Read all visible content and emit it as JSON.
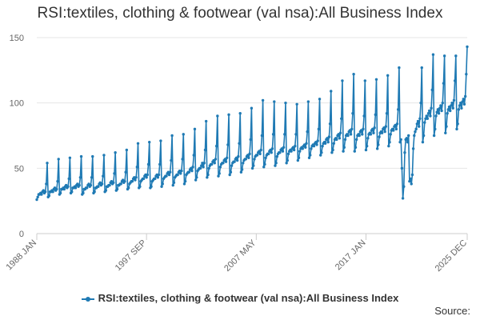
{
  "chart_data": {
    "type": "line",
    "title": "RSI:textiles, clothing & footwear (val nsa):All Business Index",
    "xlabel": "",
    "ylabel": "",
    "ylim": [
      0,
      150
    ],
    "y_ticks": [
      "0",
      "50",
      "100",
      "150"
    ],
    "x_ticks": [
      "1988 JAN",
      "1997 SEP",
      "2007 MAY",
      "2017 JAN",
      "2025 DEC"
    ],
    "x_range": [
      "1988-01",
      "2025-12"
    ],
    "grid": "horizontal",
    "legend_position": "bottom",
    "series": [
      {
        "name": "RSI:textiles, clothing & footwear (val nsa):All Business Index",
        "color": "#1f7ab4",
        "x_start": "1988-01",
        "frequency": "monthly",
        "values_by_year": {
          "1988": [
            26,
            28,
            30,
            30,
            31,
            30,
            32,
            33,
            31,
            32,
            38,
            54
          ],
          "1989": [
            28,
            29,
            32,
            32,
            33,
            32,
            34,
            35,
            33,
            34,
            40,
            57
          ],
          "1990": [
            30,
            31,
            34,
            34,
            35,
            34,
            36,
            37,
            35,
            36,
            42,
            58
          ],
          "1991": [
            31,
            32,
            35,
            35,
            36,
            35,
            37,
            38,
            36,
            37,
            43,
            59
          ],
          "1992": [
            30,
            31,
            34,
            34,
            35,
            35,
            37,
            38,
            36,
            37,
            43,
            59
          ],
          "1993": [
            31,
            32,
            35,
            35,
            36,
            36,
            38,
            39,
            37,
            38,
            44,
            60
          ],
          "1994": [
            32,
            33,
            36,
            36,
            37,
            37,
            39,
            40,
            38,
            39,
            46,
            62
          ],
          "1995": [
            33,
            34,
            37,
            37,
            38,
            38,
            40,
            41,
            39,
            40,
            47,
            64
          ],
          "1996": [
            34,
            35,
            38,
            39,
            40,
            40,
            42,
            43,
            41,
            43,
            51,
            69
          ],
          "1997": [
            35,
            36,
            40,
            41,
            42,
            42,
            44,
            45,
            43,
            45,
            53,
            70
          ],
          "1998": [
            35,
            36,
            40,
            41,
            42,
            42,
            44,
            45,
            43,
            45,
            53,
            71
          ],
          "1999": [
            36,
            38,
            42,
            43,
            44,
            44,
            46,
            47,
            45,
            47,
            56,
            75
          ],
          "2000": [
            37,
            39,
            43,
            44,
            45,
            45,
            47,
            48,
            46,
            48,
            57,
            76
          ],
          "2001": [
            38,
            40,
            45,
            46,
            47,
            47,
            49,
            50,
            48,
            51,
            60,
            80
          ],
          "2002": [
            41,
            43,
            48,
            49,
            50,
            50,
            52,
            54,
            51,
            54,
            64,
            86
          ],
          "2003": [
            43,
            45,
            50,
            52,
            53,
            53,
            55,
            56,
            54,
            57,
            67,
            90
          ],
          "2004": [
            44,
            46,
            51,
            53,
            54,
            54,
            56,
            57,
            55,
            58,
            68,
            91
          ],
          "2005": [
            45,
            47,
            52,
            54,
            55,
            55,
            57,
            58,
            56,
            59,
            69,
            92
          ],
          "2006": [
            47,
            49,
            54,
            56,
            57,
            57,
            59,
            60,
            58,
            61,
            72,
            96
          ],
          "2007": [
            50,
            52,
            57,
            59,
            60,
            60,
            62,
            63,
            61,
            64,
            75,
            102
          ],
          "2008": [
            51,
            53,
            58,
            60,
            61,
            61,
            63,
            64,
            62,
            65,
            76,
            101
          ],
          "2009": [
            52,
            54,
            59,
            61,
            62,
            62,
            64,
            65,
            63,
            66,
            76,
            100
          ],
          "2010": [
            54,
            56,
            61,
            63,
            64,
            63,
            65,
            66,
            64,
            67,
            76,
            99
          ],
          "2011": [
            56,
            58,
            63,
            65,
            66,
            65,
            67,
            68,
            66,
            69,
            78,
            101
          ],
          "2012": [
            58,
            60,
            65,
            67,
            68,
            67,
            69,
            70,
            68,
            71,
            80,
            103
          ],
          "2013": [
            60,
            62,
            67,
            69,
            70,
            69,
            72,
            73,
            70,
            74,
            84,
            109
          ],
          "2014": [
            62,
            64,
            69,
            72,
            73,
            72,
            75,
            76,
            73,
            77,
            88,
            117
          ],
          "2015": [
            63,
            66,
            72,
            75,
            76,
            75,
            78,
            79,
            76,
            80,
            92,
            122
          ],
          "2016": [
            63,
            66,
            72,
            75,
            76,
            75,
            78,
            79,
            76,
            80,
            90,
            117
          ],
          "2017": [
            64,
            67,
            73,
            76,
            77,
            76,
            79,
            80,
            77,
            81,
            91,
            118
          ],
          "2018": [
            65,
            68,
            74,
            77,
            78,
            77,
            80,
            81,
            78,
            82,
            92,
            121
          ],
          "2019": [
            67,
            70,
            76,
            79,
            80,
            79,
            82,
            83,
            80,
            84,
            95,
            127
          ],
          "2020": [
            70,
            72,
            50,
            27,
            36,
            62,
            72,
            73,
            70,
            75,
            40,
            42
          ],
          "2021": [
            38,
            45,
            65,
            75,
            78,
            80,
            84,
            86,
            82,
            88,
            100,
            127
          ],
          "2022": [
            70,
            75,
            85,
            88,
            90,
            88,
            92,
            94,
            90,
            96,
            110,
            137
          ],
          "2023": [
            75,
            80,
            90,
            93,
            95,
            92,
            96,
            98,
            94,
            100,
            115,
            136
          ],
          "2024": [
            77,
            82,
            92,
            95,
            97,
            94,
            98,
            100,
            96,
            102,
            117,
            136
          ],
          "2025": [
            80,
            84,
            95,
            98,
            100,
            96,
            101,
            103,
            99,
            105,
            122,
            143
          ]
        }
      }
    ]
  },
  "footer": {
    "source_label": "Source:"
  }
}
